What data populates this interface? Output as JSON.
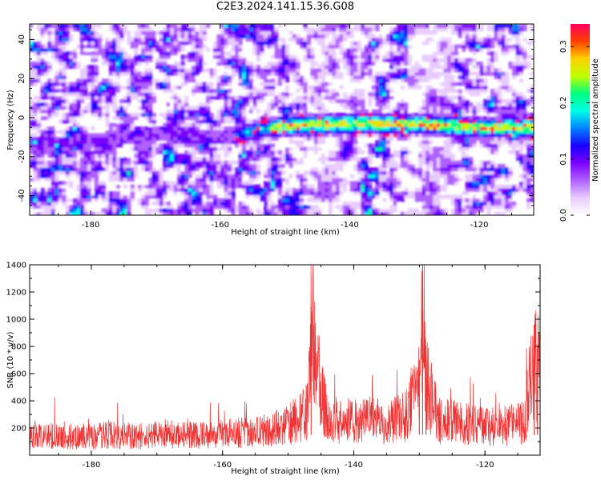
{
  "title": "C2E3.2024.141.15.36.G08",
  "colors": {
    "snr_line": "#f03232",
    "axis": "#000000",
    "colormap": [
      "#ffffff",
      "#e8ccff",
      "#b060ff",
      "#7a00ff",
      "#1a00ff",
      "#0080ff",
      "#00ffe6",
      "#00ff80",
      "#c0ff00",
      "#ffd000",
      "#ff4000",
      "#ff0060"
    ]
  },
  "chart_data": [
    {
      "type": "heatmap",
      "title": "C2E3.2024.141.15.36.G08",
      "xlabel": "Height of straight line (km)",
      "ylabel": "Frequency (Hz)",
      "xlim": [
        -189.4,
        -111.6
      ],
      "ylim": [
        -50,
        48
      ],
      "xticks": [
        -180,
        -160,
        -140,
        -120
      ],
      "xtick_labels": [
        "-180",
        "-160",
        "-140",
        "-120"
      ],
      "yticks": [
        -40,
        -20,
        0,
        20,
        40
      ],
      "ytick_labels": [
        "-40",
        "-20",
        "0",
        "20",
        "40"
      ],
      "colorbar": {
        "label": "Normalized spectral amplitude",
        "range": [
          0,
          0.34
        ],
        "ticks": [
          0.0,
          0.1,
          0.2,
          0.3
        ],
        "tick_labels": [
          "0.0",
          "0.1",
          "0.2",
          "0.3"
        ]
      },
      "features": {
        "signal_band_center_hz": [
          {
            "x": -185,
            "y": -14
          },
          {
            "x": -170,
            "y": -8
          },
          {
            "x": -160,
            "y": -10
          },
          {
            "x": -150,
            "y": -4
          },
          {
            "x": -140,
            "y": -3
          },
          {
            "x": -130,
            "y": -3
          },
          {
            "x": -120,
            "y": -5
          },
          {
            "x": -112,
            "y": -5
          }
        ],
        "peak_amplitude": 0.34
      }
    },
    {
      "type": "line",
      "xlabel": "Height of straight line (km)",
      "ylabel": "SNR (10 * v/v)",
      "xlim": [
        -189.4,
        -111.6
      ],
      "ylim": [
        0,
        1400
      ],
      "xticks": [
        -180,
        -160,
        -140,
        -120
      ],
      "xtick_labels": [
        "-180",
        "-160",
        "-140",
        "-120"
      ],
      "yticks": [
        200,
        400,
        600,
        800,
        1000,
        1200,
        1400
      ],
      "ytick_labels": [
        "200",
        "400",
        "600",
        "800",
        "1000",
        "1200",
        "1400"
      ],
      "series": [
        {
          "x": [
            -189,
            -186,
            -183,
            -180,
            -177,
            -174,
            -171,
            -168,
            -165,
            -162,
            -159,
            -156,
            -153,
            -150,
            -147,
            -146.5,
            -144,
            -141,
            -138,
            -135,
            -132,
            -130,
            -129.5,
            -129,
            -127,
            -124,
            -121,
            -118,
            -116,
            -114,
            -112.5,
            -112
          ],
          "values": [
            170,
            180,
            175,
            170,
            185,
            180,
            175,
            190,
            185,
            180,
            200,
            210,
            230,
            280,
            400,
            1090,
            330,
            320,
            330,
            300,
            350,
            700,
            1410,
            650,
            320,
            300,
            270,
            260,
            280,
            300,
            960,
            800
          ]
        }
      ]
    }
  ]
}
